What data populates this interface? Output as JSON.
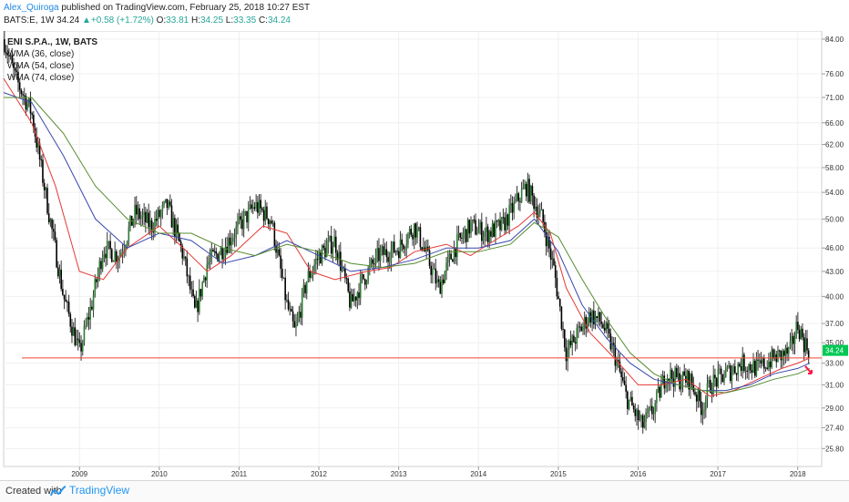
{
  "header": {
    "author": "Alex_Quiroga",
    "published": "published on TradingView.com, February 25, 2018 10:27 EST",
    "symbol": "BATS:E, 1W",
    "last": "34.24",
    "change": "+0.58 (+1.72%)",
    "o_label": "O:",
    "o": "33.81",
    "h_label": "H:",
    "h": "34.25",
    "l_label": "L:",
    "l": "33.35",
    "c_label": "C:",
    "c": "34.24"
  },
  "legend": {
    "title": "ENI S.P.A., 1W, BATS",
    "indicators": [
      "WMA (36, close)",
      "WMA (54, close)",
      "WMA (74, close)"
    ]
  },
  "footer": {
    "created": "Created with",
    "brand": "TradingView"
  },
  "colors": {
    "up": "#26a69a",
    "down": "#000000",
    "candle_up_body": "#2e7d32",
    "wma36": "#e53935",
    "wma54": "#3949ab",
    "wma74": "#558b2f",
    "support": "#f44336",
    "price_badge": "#00c853",
    "arrow": "#ff1744"
  },
  "chart_data": {
    "type": "line",
    "ylim": [
      24.5,
      86.0
    ],
    "xlim": [
      2008.05,
      2018.3
    ],
    "log_scale": true,
    "y_ticks": [
      "84.00",
      "76.00",
      "71.00",
      "66.00",
      "62.00",
      "58.00",
      "54.00",
      "50.00",
      "46.00",
      "43.00",
      "40.00",
      "37.00",
      "35.00",
      "33.00",
      "31.00",
      "29.00",
      "27.40",
      "25.80"
    ],
    "x_ticks": [
      "2009",
      "2010",
      "2011",
      "2012",
      "2013",
      "2014",
      "2015",
      "2016",
      "2017",
      "2018"
    ],
    "last_price_label": "34.24",
    "support_level": 33.5,
    "series": [
      {
        "name": "ENI S.P.A., 1W, BATS",
        "style": "candles",
        "x": [
          2008.05,
          2008.2,
          2008.4,
          2008.6,
          2008.8,
          2009.0,
          2009.15,
          2009.3,
          2009.5,
          2009.7,
          2009.9,
          2010.1,
          2010.3,
          2010.45,
          2010.6,
          2010.8,
          2011.0,
          2011.2,
          2011.4,
          2011.6,
          2011.7,
          2011.85,
          2012.0,
          2012.2,
          2012.4,
          2012.55,
          2012.75,
          2013.0,
          2013.2,
          2013.35,
          2013.5,
          2013.7,
          2013.9,
          2014.1,
          2014.3,
          2014.5,
          2014.6,
          2014.8,
          2014.95,
          2015.1,
          2015.25,
          2015.4,
          2015.55,
          2015.7,
          2015.85,
          2016.05,
          2016.2,
          2016.35,
          2016.5,
          2016.65,
          2016.8,
          2016.9,
          2017.1,
          2017.3,
          2017.5,
          2017.7,
          2017.9,
          2018.0,
          2018.08,
          2018.15
        ],
        "values": [
          84,
          75,
          68,
          52,
          40,
          34,
          39,
          46,
          45,
          51,
          49,
          52,
          45,
          38,
          44,
          46,
          49,
          52,
          50,
          39,
          36,
          42,
          45,
          47,
          39,
          42,
          45,
          46,
          49,
          45,
          41,
          46,
          49,
          48,
          49,
          53,
          55,
          50,
          43,
          34,
          36,
          38,
          37,
          34,
          30,
          27.5,
          29,
          32,
          31.5,
          31.5,
          29,
          31,
          32,
          33,
          32.5,
          33.5,
          34,
          37,
          35,
          34.24
        ]
      },
      {
        "name": "WMA (36, close)",
        "x": [
          2008.05,
          2008.4,
          2008.7,
          2009.0,
          2009.3,
          2009.6,
          2010.0,
          2010.3,
          2010.6,
          2010.9,
          2011.3,
          2011.6,
          2011.9,
          2012.2,
          2012.6,
          2012.9,
          2013.2,
          2013.6,
          2013.9,
          2014.2,
          2014.5,
          2014.7,
          2014.9,
          2015.1,
          2015.4,
          2015.7,
          2016.0,
          2016.3,
          2016.6,
          2016.9,
          2017.2,
          2017.5,
          2017.8,
          2018.0,
          2018.15
        ],
        "values": [
          75,
          66,
          55,
          43,
          42,
          46,
          49,
          46,
          43,
          45,
          49,
          48,
          43,
          42,
          43,
          43.5,
          45.5,
          46.5,
          45,
          47,
          49,
          51,
          48,
          41,
          36,
          33.5,
          31,
          31,
          31.5,
          30,
          30.5,
          31.5,
          32.5,
          33,
          33.5
        ]
      },
      {
        "name": "WMA (54, close)",
        "x": [
          2008.05,
          2008.4,
          2008.8,
          2009.2,
          2009.6,
          2010.0,
          2010.4,
          2010.8,
          2011.2,
          2011.6,
          2012.0,
          2012.4,
          2012.8,
          2013.2,
          2013.6,
          2014.0,
          2014.4,
          2014.7,
          2015.0,
          2015.3,
          2015.6,
          2015.9,
          2016.2,
          2016.5,
          2016.8,
          2017.1,
          2017.4,
          2017.7,
          2018.0,
          2018.15
        ],
        "values": [
          72,
          70,
          60,
          50,
          46,
          48,
          47,
          44,
          45,
          47,
          45,
          43,
          43.5,
          44.5,
          46,
          46,
          47,
          50,
          45.5,
          39,
          35.5,
          33,
          31.5,
          31,
          30.5,
          30.5,
          31,
          32,
          32.5,
          33
        ]
      },
      {
        "name": "WMA (74, close)",
        "x": [
          2008.05,
          2008.4,
          2008.8,
          2009.2,
          2009.6,
          2010.0,
          2010.4,
          2010.8,
          2011.2,
          2011.6,
          2012.0,
          2012.4,
          2012.8,
          2013.2,
          2013.6,
          2014.0,
          2014.4,
          2014.7,
          2015.0,
          2015.3,
          2015.6,
          2015.9,
          2016.2,
          2016.5,
          2016.8,
          2017.1,
          2017.4,
          2017.7,
          2018.0,
          2018.15
        ],
        "values": [
          71,
          71,
          64,
          55,
          50,
          48,
          48,
          46,
          45,
          46.5,
          45.5,
          44,
          43.5,
          44,
          45.5,
          45.5,
          46.5,
          49.5,
          47.5,
          42,
          37.5,
          34,
          32,
          31,
          30.5,
          30.3,
          30.8,
          31.5,
          32,
          32.5
        ]
      }
    ]
  }
}
